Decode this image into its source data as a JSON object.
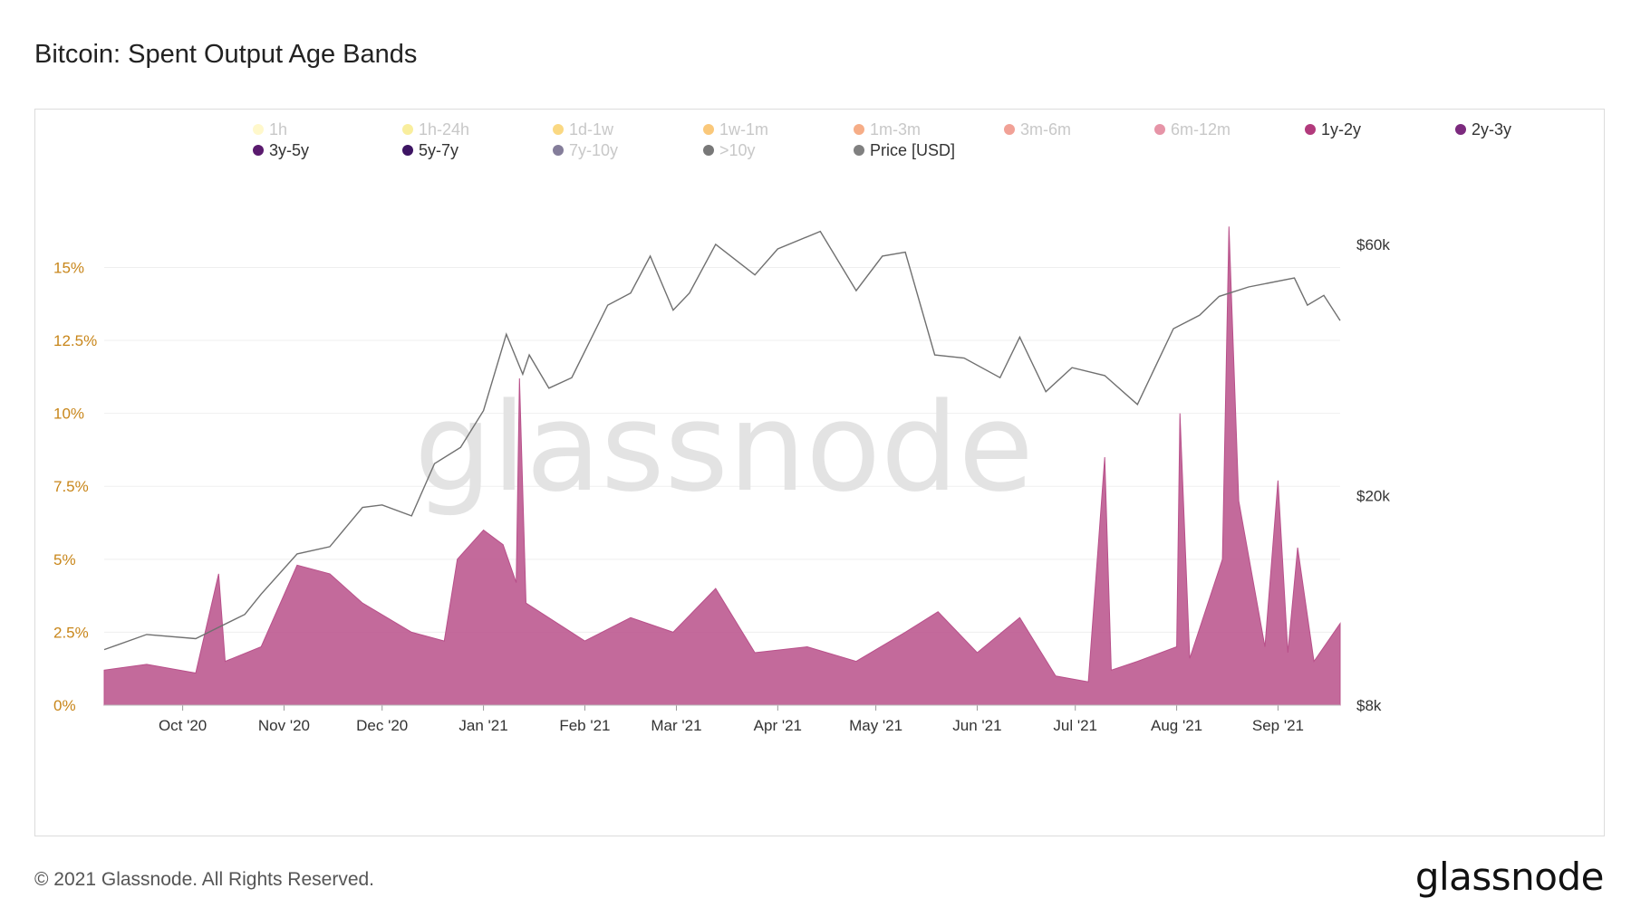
{
  "page": {
    "title": "Bitcoin: Spent Output Age Bands",
    "copyright": "© 2021 Glassnode. All Rights Reserved.",
    "logo": "glassnode",
    "watermark": "glassnode"
  },
  "chart_data": {
    "type": "area",
    "title": "Bitcoin: Spent Output Age Bands",
    "x_range": [
      "2020-09-07",
      "2021-09-20"
    ],
    "x_ticks": [
      {
        "date": "2020-10-01",
        "label": "Oct '20"
      },
      {
        "date": "2020-11-01",
        "label": "Nov '20"
      },
      {
        "date": "2020-12-01",
        "label": "Dec '20"
      },
      {
        "date": "2021-01-01",
        "label": "Jan '21"
      },
      {
        "date": "2021-02-01",
        "label": "Feb '21"
      },
      {
        "date": "2021-03-01",
        "label": "Mar '21"
      },
      {
        "date": "2021-04-01",
        "label": "Apr '21"
      },
      {
        "date": "2021-05-01",
        "label": "May '21"
      },
      {
        "date": "2021-06-01",
        "label": "Jun '21"
      },
      {
        "date": "2021-07-01",
        "label": "Jul '21"
      },
      {
        "date": "2021-08-01",
        "label": "Aug '21"
      },
      {
        "date": "2021-09-01",
        "label": "Sep '21"
      }
    ],
    "y_left": {
      "unit": "%",
      "range": [
        0,
        17
      ],
      "ticks": [
        {
          "value": 0,
          "label": "0%"
        },
        {
          "value": 2.5,
          "label": "2.5%"
        },
        {
          "value": 5,
          "label": "5%"
        },
        {
          "value": 7.5,
          "label": "7.5%"
        },
        {
          "value": 10,
          "label": "10%"
        },
        {
          "value": 12.5,
          "label": "12.5%"
        },
        {
          "value": 15,
          "label": "15%"
        }
      ],
      "color": "#c8861a"
    },
    "y_right": {
      "scale": "log",
      "range": [
        8000,
        70000
      ],
      "ticks": [
        {
          "value": 8000,
          "label": "$8k"
        },
        {
          "value": 20000,
          "label": "$20k"
        },
        {
          "value": 60000,
          "label": "$60k"
        }
      ]
    },
    "grid": true,
    "legend": {
      "placement": "top",
      "entries": [
        {
          "label": "1h",
          "color": "#fff3a0",
          "active": false
        },
        {
          "label": "1h-24h",
          "color": "#f4e04d",
          "active": false
        },
        {
          "label": "1d-1w",
          "color": "#f5b81c",
          "active": false
        },
        {
          "label": "1w-1m",
          "color": "#f59a0c",
          "active": false
        },
        {
          "label": "1m-3m",
          "color": "#ef6a25",
          "active": false
        },
        {
          "label": "3m-6m",
          "color": "#e5533f",
          "active": false
        },
        {
          "label": "6m-12m",
          "color": "#d23d5e",
          "active": false
        },
        {
          "label": "1y-2y",
          "color": "#b23a7c",
          "active": true
        },
        {
          "label": "2y-3y",
          "color": "#7c2a7e",
          "active": true
        },
        {
          "label": "3y-5y",
          "color": "#5a1a6e",
          "active": true
        },
        {
          "label": "5y-7y",
          "color": "#3d1463",
          "active": true
        },
        {
          "label": "7y-10y",
          "color": "#1f1247",
          "active": false
        },
        {
          "label": ">10y",
          "color": "#0a0a0a",
          "active": false
        },
        {
          "label": "Price [USD]",
          "color": "#808080",
          "active": true
        }
      ]
    },
    "price_series": {
      "name": "Price [USD]",
      "color": "#707070",
      "points": [
        [
          "2020-09-07",
          10200
        ],
        [
          "2020-09-20",
          10900
        ],
        [
          "2020-10-05",
          10700
        ],
        [
          "2020-10-20",
          11900
        ],
        [
          "2020-10-25",
          13000
        ],
        [
          "2020-11-05",
          15500
        ],
        [
          "2020-11-15",
          16000
        ],
        [
          "2020-11-25",
          19000
        ],
        [
          "2020-12-01",
          19200
        ],
        [
          "2020-12-10",
          18300
        ],
        [
          "2020-12-17",
          23000
        ],
        [
          "2020-12-25",
          24700
        ],
        [
          "2021-01-01",
          29000
        ],
        [
          "2021-01-08",
          40500
        ],
        [
          "2021-01-13",
          34000
        ],
        [
          "2021-01-15",
          37000
        ],
        [
          "2021-01-21",
          32000
        ],
        [
          "2021-01-28",
          33500
        ],
        [
          "2021-02-08",
          46000
        ],
        [
          "2021-02-15",
          48500
        ],
        [
          "2021-02-21",
          57000
        ],
        [
          "2021-02-28",
          45000
        ],
        [
          "2021-03-05",
          48500
        ],
        [
          "2021-03-13",
          60000
        ],
        [
          "2021-03-25",
          52500
        ],
        [
          "2021-04-01",
          58800
        ],
        [
          "2021-04-14",
          63500
        ],
        [
          "2021-04-25",
          49000
        ],
        [
          "2021-05-03",
          57000
        ],
        [
          "2021-05-10",
          58000
        ],
        [
          "2021-05-19",
          37000
        ],
        [
          "2021-05-28",
          36500
        ],
        [
          "2021-06-08",
          33500
        ],
        [
          "2021-06-14",
          40000
        ],
        [
          "2021-06-22",
          31500
        ],
        [
          "2021-06-30",
          35000
        ],
        [
          "2021-07-10",
          33800
        ],
        [
          "2021-07-20",
          29800
        ],
        [
          "2021-07-31",
          41500
        ],
        [
          "2021-08-08",
          44000
        ],
        [
          "2021-08-14",
          47800
        ],
        [
          "2021-08-23",
          49800
        ],
        [
          "2021-09-06",
          51800
        ],
        [
          "2021-09-10",
          46000
        ],
        [
          "2021-09-15",
          48000
        ],
        [
          "2021-09-20",
          43000
        ]
      ]
    },
    "band_series": [
      {
        "name": "1y-2y",
        "color": "#b8508a",
        "total_percent_points": [
          [
            "2020-09-07",
            1.2
          ],
          [
            "2020-09-20",
            1.4
          ],
          [
            "2020-10-05",
            1.1
          ],
          [
            "2020-10-12",
            4.5
          ],
          [
            "2020-10-14",
            1.5
          ],
          [
            "2020-10-25",
            2.0
          ],
          [
            "2020-11-05",
            4.8
          ],
          [
            "2020-11-15",
            4.5
          ],
          [
            "2020-11-25",
            3.5
          ],
          [
            "2020-12-10",
            2.5
          ],
          [
            "2020-12-20",
            2.2
          ],
          [
            "2020-12-24",
            5.0
          ],
          [
            "2021-01-01",
            6.0
          ],
          [
            "2021-01-07",
            5.5
          ],
          [
            "2021-01-11",
            4.2
          ],
          [
            "2021-01-12",
            11.2
          ],
          [
            "2021-01-14",
            3.5
          ],
          [
            "2021-02-01",
            2.2
          ],
          [
            "2021-02-15",
            3.0
          ],
          [
            "2021-02-28",
            2.5
          ],
          [
            "2021-03-13",
            4.0
          ],
          [
            "2021-03-25",
            1.8
          ],
          [
            "2021-04-10",
            2.0
          ],
          [
            "2021-04-25",
            1.5
          ],
          [
            "2021-05-10",
            2.5
          ],
          [
            "2021-05-20",
            3.2
          ],
          [
            "2021-06-01",
            1.8
          ],
          [
            "2021-06-14",
            3.0
          ],
          [
            "2021-06-25",
            1.0
          ],
          [
            "2021-07-05",
            0.8
          ],
          [
            "2021-07-10",
            8.5
          ],
          [
            "2021-07-12",
            1.2
          ],
          [
            "2021-07-20",
            1.5
          ],
          [
            "2021-08-01",
            2.0
          ],
          [
            "2021-08-02",
            10.0
          ],
          [
            "2021-08-05",
            1.6
          ],
          [
            "2021-08-15",
            5.0
          ],
          [
            "2021-08-17",
            16.4
          ],
          [
            "2021-08-20",
            7.0
          ],
          [
            "2021-08-28",
            2.0
          ],
          [
            "2021-09-01",
            7.7
          ],
          [
            "2021-09-04",
            1.8
          ],
          [
            "2021-09-07",
            5.4
          ],
          [
            "2021-09-12",
            1.5
          ],
          [
            "2021-09-20",
            2.8
          ]
        ]
      }
    ]
  }
}
